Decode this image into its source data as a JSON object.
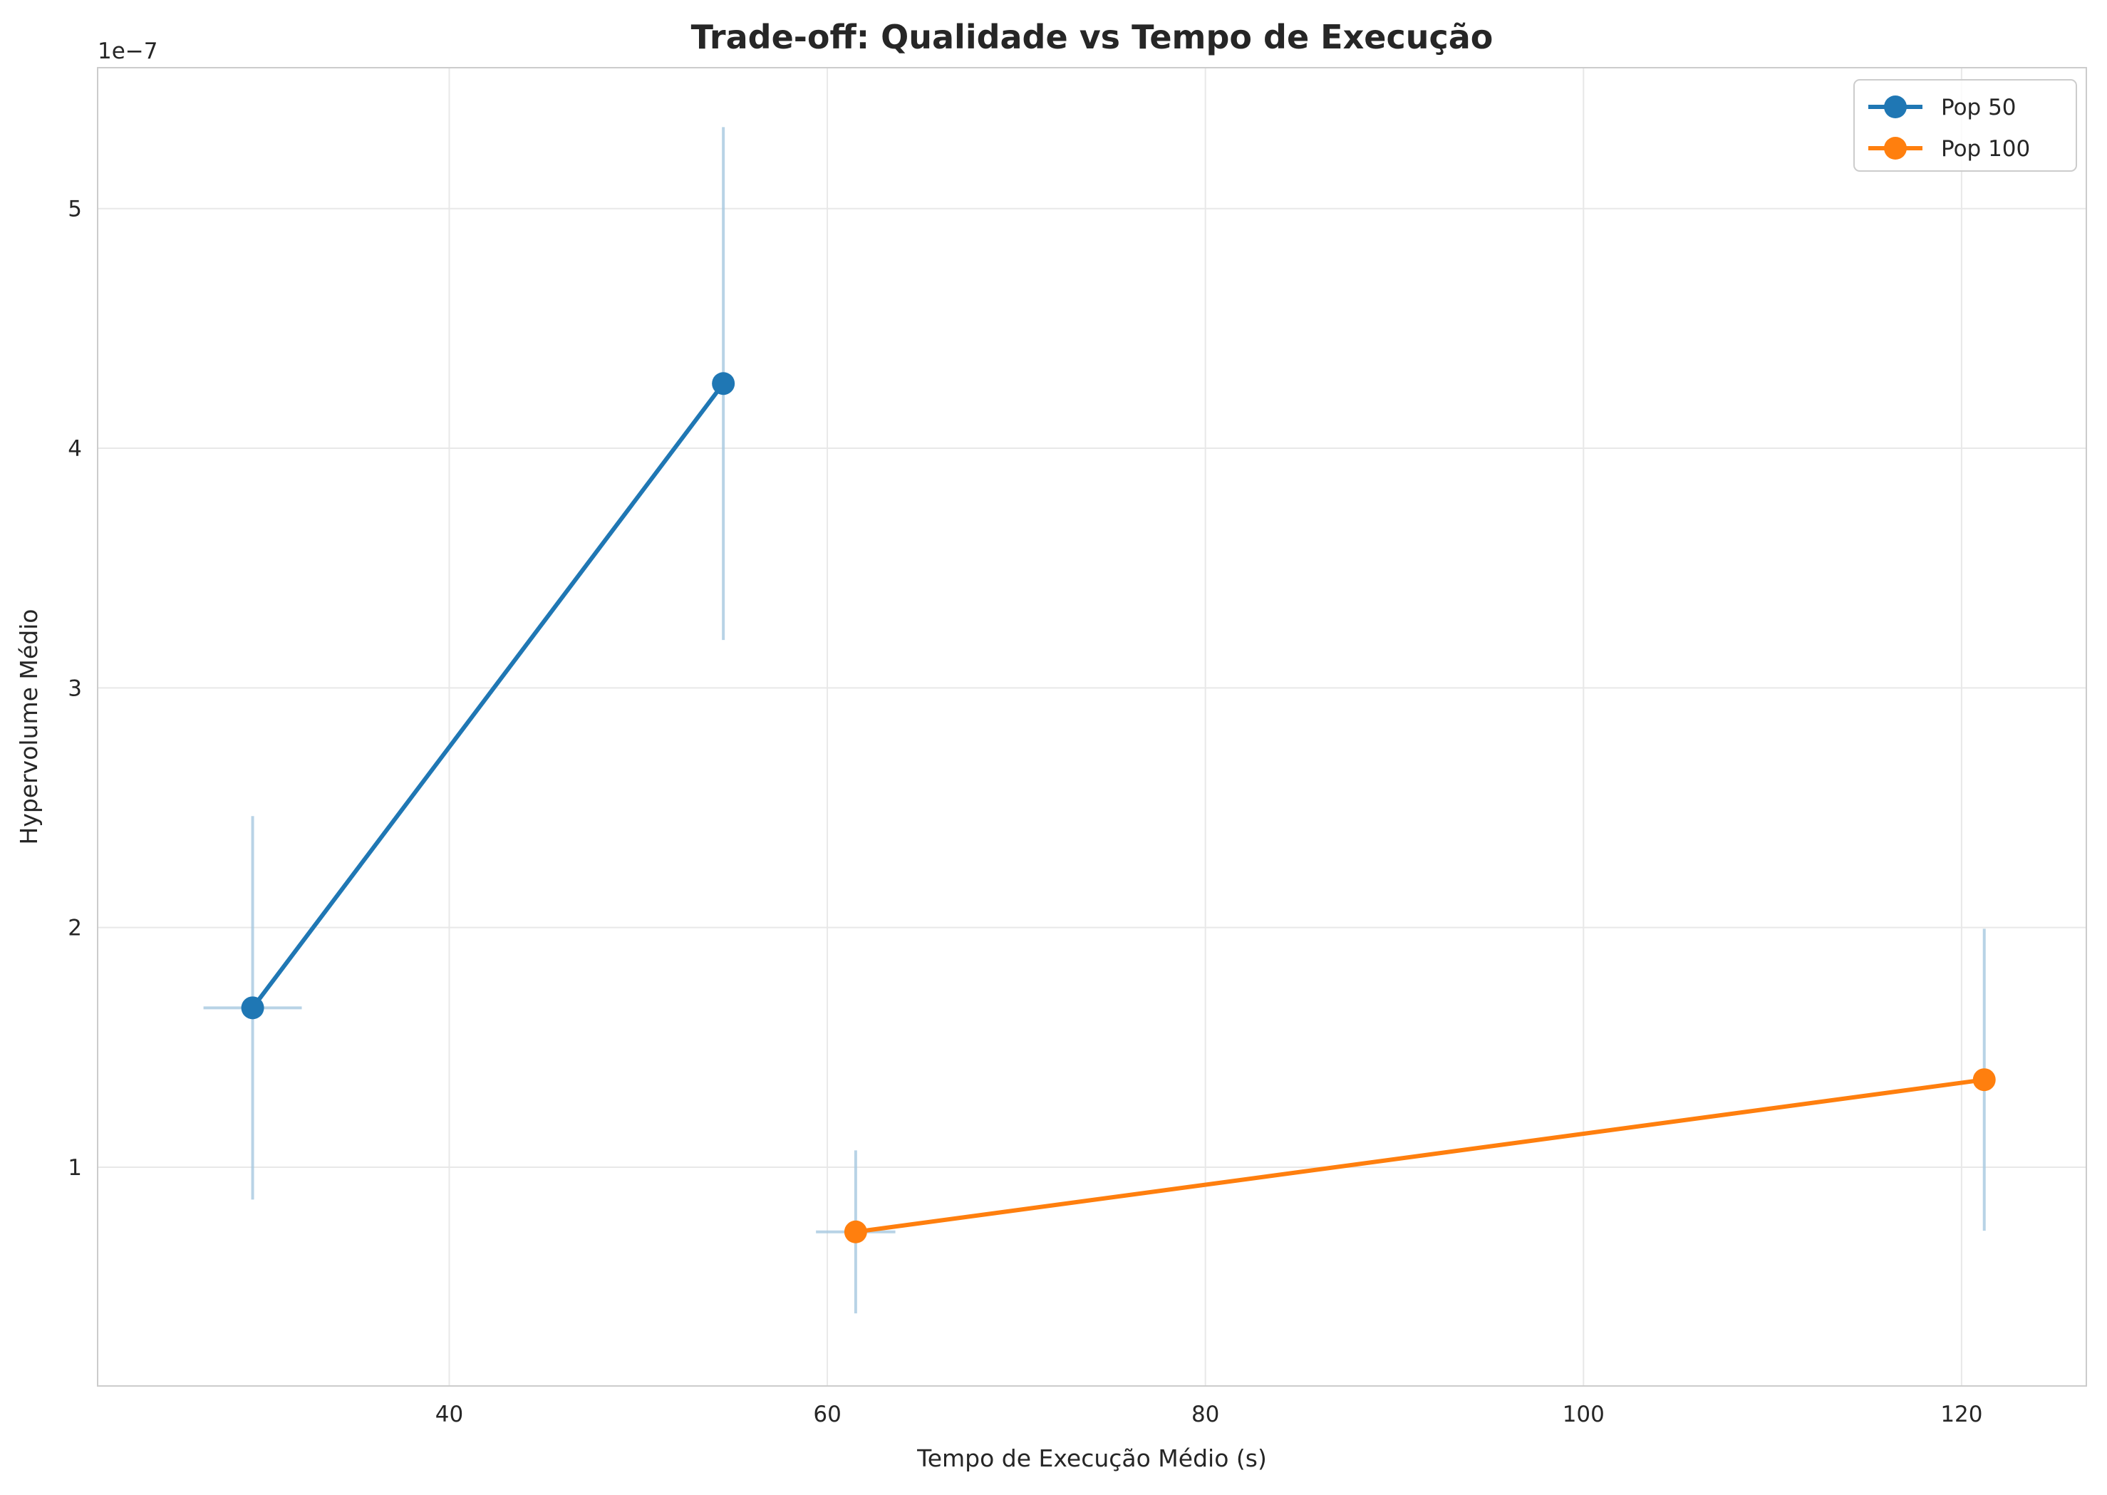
{
  "chart_data": {
    "type": "line",
    "title": "Trade-off: Qualidade vs Tempo de Execução",
    "xlabel": "Tempo de Execução Médio (s)",
    "ylabel": "Hypervolume Médio",
    "y_offset_label": "1e−7",
    "y_scale_factor": 1e-07,
    "xlim": [
      21.4,
      126.6
    ],
    "ylim": [
      8.7e-09,
      5.588e-07
    ],
    "x_ticks": [
      40,
      60,
      80,
      100,
      120
    ],
    "y_ticks": [
      1,
      2,
      3,
      4,
      5
    ],
    "grid": true,
    "legend_position": "upper-right",
    "series": [
      {
        "name": "Pop 50",
        "color": "#1f77b4",
        "x": [
          29.6,
          54.5
        ],
        "y": [
          1.665e-07,
          4.27e-07
        ],
        "x_err": [
          2.6,
          0
        ],
        "y_err_low": [
          8e-08,
          1.07e-07
        ],
        "y_err_high": [
          8e-08,
          1.07e-07
        ]
      },
      {
        "name": "Pop 100",
        "color": "#ff7f0e",
        "x": [
          61.5,
          121.2
        ],
        "y": [
          7.3e-08,
          1.365e-07
        ],
        "x_err": [
          2.1,
          0
        ],
        "y_err_low": [
          3.4e-08,
          6.3e-08
        ],
        "y_err_high": [
          3.4e-08,
          6.3e-08
        ]
      }
    ],
    "errorbar_color": "#a6c8e0"
  }
}
